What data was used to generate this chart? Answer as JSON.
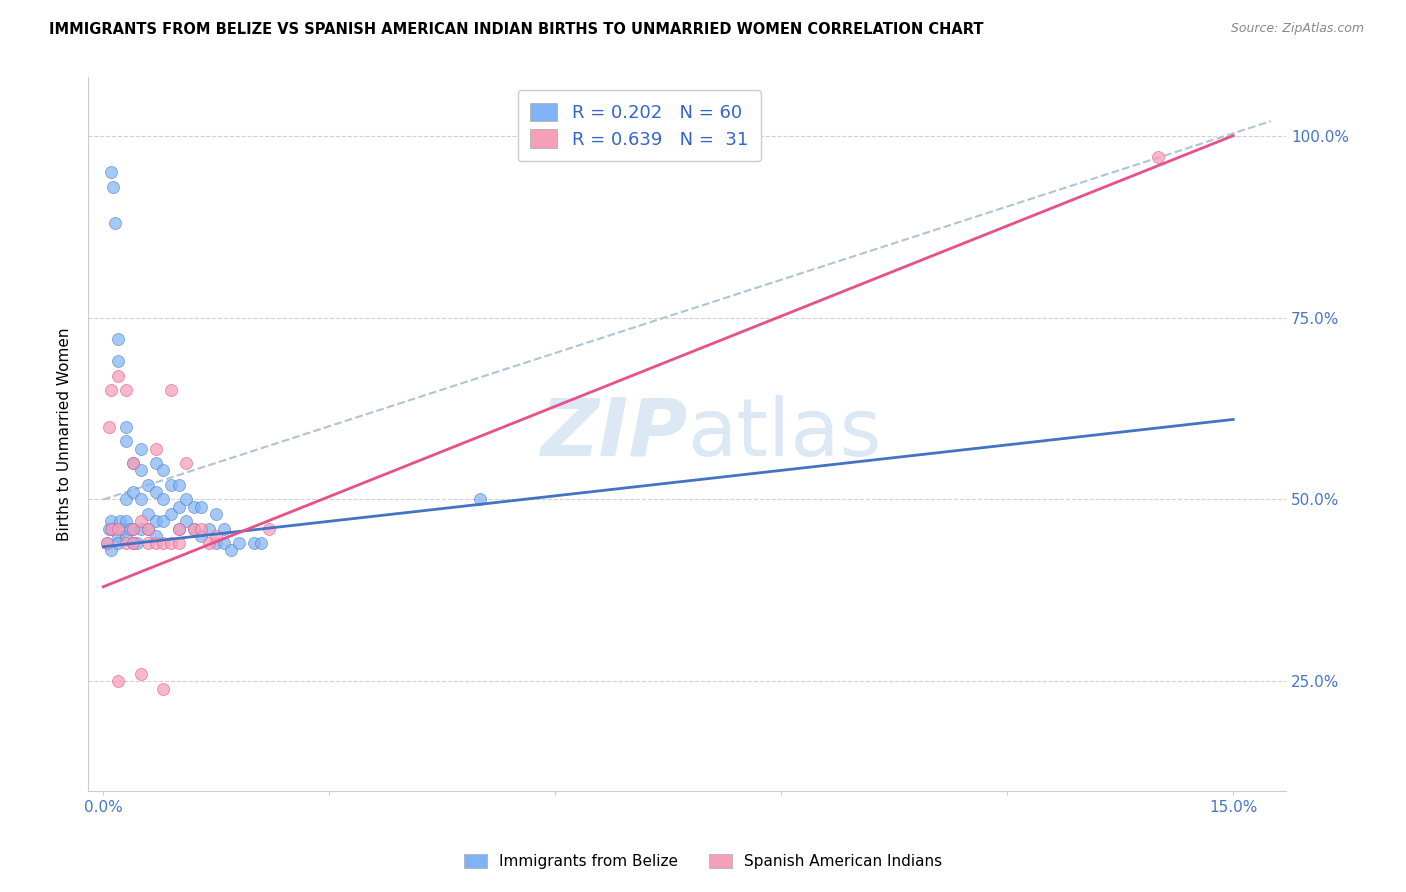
{
  "title": "IMMIGRANTS FROM BELIZE VS SPANISH AMERICAN INDIAN BIRTHS TO UNMARRIED WOMEN CORRELATION CHART",
  "source": "Source: ZipAtlas.com",
  "ylabel": "Births to Unmarried Women",
  "xlim": [
    -0.002,
    0.157
  ],
  "ylim": [
    0.1,
    1.08
  ],
  "blue_R": 0.202,
  "blue_N": 60,
  "pink_R": 0.639,
  "pink_N": 31,
  "blue_color": "#7fb3f5",
  "pink_color": "#f5a0b8",
  "blue_line_color": "#4472c4",
  "pink_line_color": "#e8508a",
  "dash_color": "#b0c4d8",
  "grid_color": "#d0d0d0",
  "watermark_color": "#dde8f5",
  "legend_label_blue": "Immigrants from Belize",
  "legend_label_pink": "Spanish American Indians",
  "blue_line_x0": 0.0,
  "blue_line_y0": 0.435,
  "blue_line_x1": 0.15,
  "blue_line_y1": 0.61,
  "pink_line_x0": 0.0,
  "pink_line_y0": 0.38,
  "pink_line_x1": 0.15,
  "pink_line_y1": 1.0,
  "dash_line_x0": 0.0,
  "dash_line_y0": 0.5,
  "dash_line_x1": 0.155,
  "dash_line_y1": 1.02,
  "blue_x": [
    0.0005,
    0.0008,
    0.001,
    0.001,
    0.001,
    0.0012,
    0.0013,
    0.0015,
    0.002,
    0.002,
    0.002,
    0.002,
    0.0022,
    0.0025,
    0.003,
    0.003,
    0.003,
    0.003,
    0.003,
    0.004,
    0.004,
    0.004,
    0.004,
    0.005,
    0.005,
    0.005,
    0.005,
    0.006,
    0.006,
    0.006,
    0.007,
    0.007,
    0.007,
    0.007,
    0.008,
    0.008,
    0.008,
    0.009,
    0.009,
    0.01,
    0.01,
    0.01,
    0.011,
    0.011,
    0.012,
    0.012,
    0.013,
    0.013,
    0.014,
    0.015,
    0.015,
    0.016,
    0.016,
    0.017,
    0.018,
    0.02,
    0.021,
    0.0035,
    0.0045,
    0.05
  ],
  "blue_y": [
    0.44,
    0.46,
    0.47,
    0.95,
    0.43,
    0.46,
    0.93,
    0.88,
    0.72,
    0.69,
    0.45,
    0.44,
    0.47,
    0.46,
    0.6,
    0.58,
    0.5,
    0.47,
    0.45,
    0.55,
    0.51,
    0.46,
    0.44,
    0.57,
    0.54,
    0.5,
    0.46,
    0.52,
    0.48,
    0.46,
    0.55,
    0.51,
    0.47,
    0.45,
    0.54,
    0.5,
    0.47,
    0.52,
    0.48,
    0.52,
    0.49,
    0.46,
    0.5,
    0.47,
    0.49,
    0.46,
    0.49,
    0.45,
    0.46,
    0.48,
    0.44,
    0.46,
    0.44,
    0.43,
    0.44,
    0.44,
    0.44,
    0.46,
    0.44,
    0.5
  ],
  "pink_x": [
    0.0005,
    0.0008,
    0.001,
    0.001,
    0.002,
    0.002,
    0.002,
    0.003,
    0.003,
    0.004,
    0.004,
    0.004,
    0.005,
    0.005,
    0.006,
    0.006,
    0.007,
    0.007,
    0.008,
    0.008,
    0.009,
    0.009,
    0.01,
    0.01,
    0.011,
    0.012,
    0.013,
    0.014,
    0.015,
    0.022,
    0.14
  ],
  "pink_y": [
    0.44,
    0.6,
    0.65,
    0.46,
    0.67,
    0.46,
    0.25,
    0.65,
    0.44,
    0.46,
    0.55,
    0.44,
    0.47,
    0.26,
    0.46,
    0.44,
    0.57,
    0.44,
    0.44,
    0.24,
    0.44,
    0.65,
    0.46,
    0.44,
    0.55,
    0.46,
    0.46,
    0.44,
    0.45,
    0.46,
    0.97
  ]
}
